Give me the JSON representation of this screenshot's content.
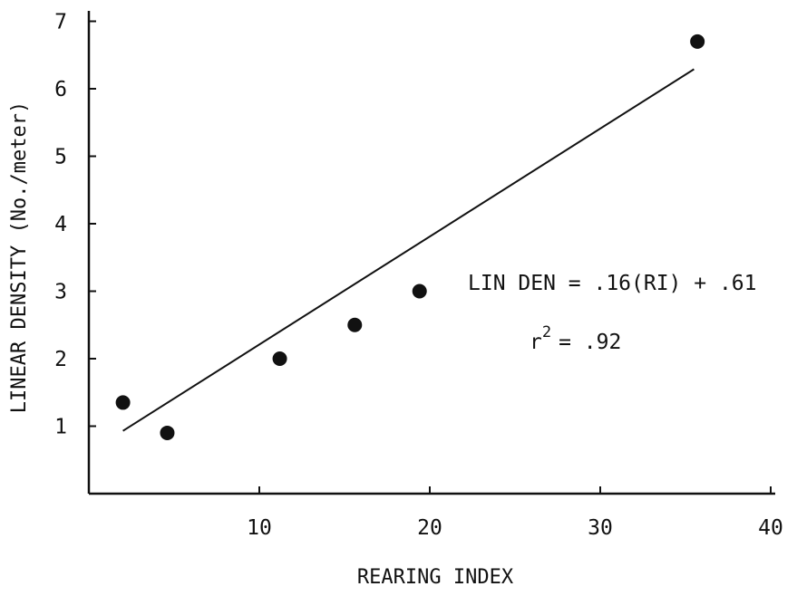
{
  "chart_data": {
    "type": "scatter",
    "title": "",
    "xlabel": "REARING INDEX",
    "ylabel": "LINEAR DENSITY (No./meter)",
    "xlim": [
      0,
      40
    ],
    "ylim": [
      0,
      7
    ],
    "x_ticks": [
      10,
      20,
      30,
      40
    ],
    "y_ticks": [
      1,
      2,
      3,
      4,
      5,
      6,
      7
    ],
    "grid": false,
    "legend": "none",
    "points": [
      {
        "x": 2,
        "y": 1.35
      },
      {
        "x": 4.6,
        "y": 0.9
      },
      {
        "x": 11.2,
        "y": 2.0
      },
      {
        "x": 15.6,
        "y": 2.5
      },
      {
        "x": 19.4,
        "y": 3.0
      },
      {
        "x": 35.7,
        "y": 6.7
      }
    ],
    "fit_line": {
      "slope": 0.16,
      "intercept": 0.61,
      "x_start": 2,
      "x_end": 35.5
    },
    "annotation": {
      "equation": "LIN DEN = .16(RI) + .61",
      "r2_symbol": "r",
      "r2_exponent": "2",
      "r2_value": "= .92"
    },
    "colors": {
      "ink": "#111111",
      "background": "#ffffff"
    }
  }
}
